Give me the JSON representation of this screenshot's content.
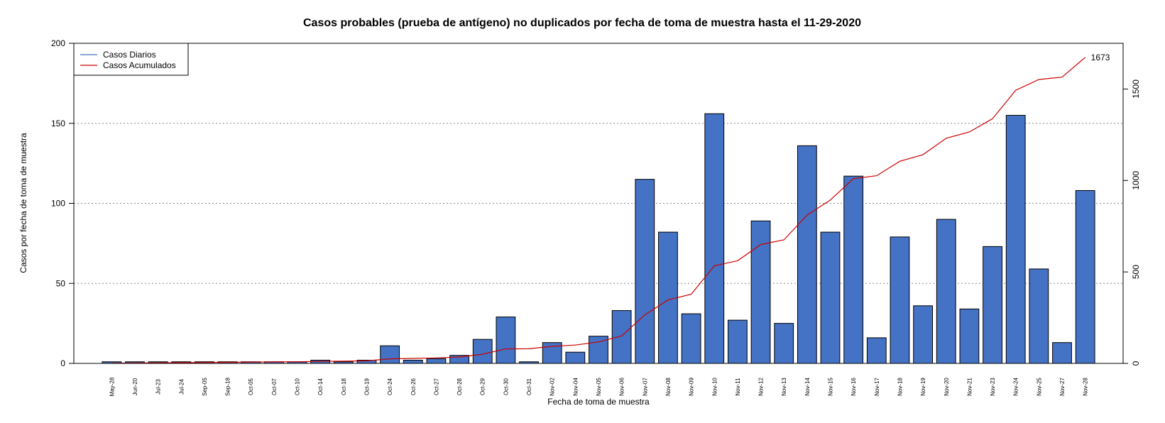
{
  "chart_data": {
    "type": "bar",
    "title": "Casos probables (prueba de antígeno) no duplicados por fecha de toma de muestra hasta el 11-29-2020",
    "xlabel": "Fecha de toma de muestra",
    "ylabel": "Casos por fecha de toma de muestra",
    "ylim": [
      0,
      200
    ],
    "y2lim": [
      0,
      1750
    ],
    "yticks": [
      "0",
      "50",
      "100",
      "150",
      "200"
    ],
    "y2ticks": [
      "0",
      "500",
      "1000",
      "1500"
    ],
    "grid": "horizontal dotted",
    "legend_position": "top-left",
    "categories": [
      "May-28",
      "Jun-20",
      "Jul-23",
      "Jul-24",
      "Sep-05",
      "Sep-18",
      "Oct-05",
      "Oct-07",
      "Oct-10",
      "Oct-14",
      "Oct-18",
      "Oct-19",
      "Oct-24",
      "Oct-26",
      "Oct-27",
      "Oct-28",
      "Oct-29",
      "Oct-30",
      "Oct-31",
      "Nov-02",
      "Nov-04",
      "Nov-05",
      "Nov-06",
      "Nov-07",
      "Nov-08",
      "Nov-09",
      "Nov-10",
      "Nov-11",
      "Nov-12",
      "Nov-13",
      "Nov-14",
      "Nov-15",
      "Nov-16",
      "Nov-17",
      "Nov-18",
      "Nov-19",
      "Nov-20",
      "Nov-21",
      "Nov-23",
      "Nov-24",
      "Nov-25",
      "Nov-27",
      "Nov-28"
    ],
    "series": [
      {
        "name": "Casos Diarios",
        "kind": "bar",
        "color": "#4472C4",
        "values": [
          1,
          1,
          1,
          1,
          1,
          1,
          1,
          1,
          1,
          2,
          1,
          2,
          11,
          2,
          3,
          5,
          15,
          29,
          1,
          13,
          7,
          17,
          33,
          115,
          82,
          31,
          156,
          27,
          89,
          25,
          136,
          82,
          117,
          16,
          79,
          36,
          90,
          34,
          73,
          155,
          59,
          13,
          108
        ]
      },
      {
        "name": "Casos Acumulados",
        "kind": "line",
        "axis": "right",
        "color": "#CC0000",
        "values": [
          1,
          2,
          3,
          4,
          5,
          6,
          7,
          8,
          9,
          11,
          12,
          14,
          25,
          27,
          30,
          35,
          50,
          79,
          80,
          93,
          100,
          117,
          150,
          265,
          347,
          378,
          534,
          561,
          650,
          675,
          811,
          893,
          1010,
          1026,
          1105,
          1141,
          1231,
          1265,
          1338,
          1493,
          1552,
          1565,
          1673
        ]
      }
    ],
    "end_label": "1673"
  }
}
